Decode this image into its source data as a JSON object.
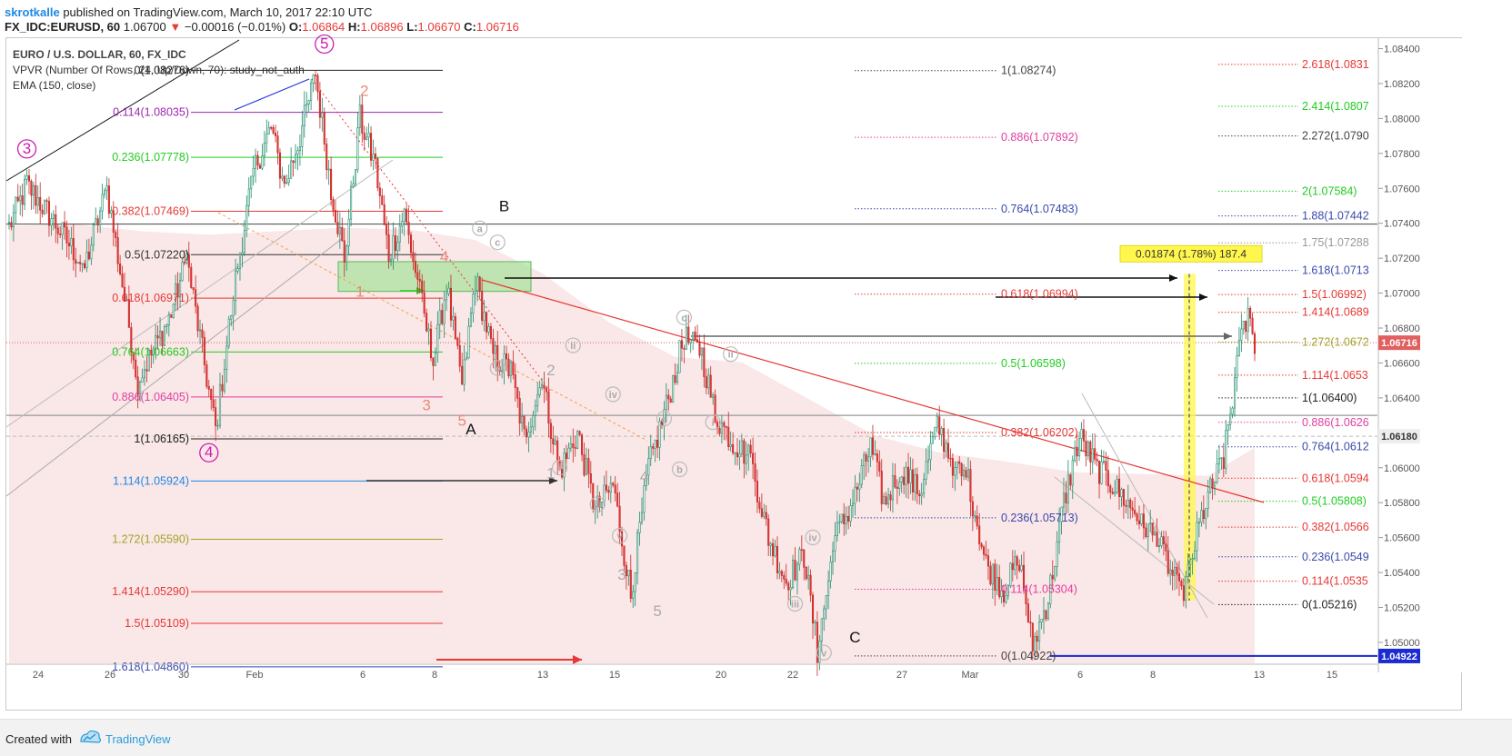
{
  "header": {
    "author": "skrotkalle",
    "published": " published on TradingView.com, March 10, 2017 22:10 UTC",
    "symbol": "FX_IDC:EURUSD, 60",
    "last": "1.06700",
    "arrow": "▼",
    "change": "−0.00016 (−0.01%)",
    "o_label": "O:",
    "o": "1.06864",
    "h_label": "H:",
    "h": "1.06896",
    "l_label": "L:",
    "l": "1.06670",
    "c_label": "C:",
    "c": "1.06716"
  },
  "legend": {
    "title": "EURO / U.S. DOLLAR, 60, FX_IDC",
    "vpvr": "VPVR (Number Of Rows, 24, Up/Down, 70): study_not_auth",
    "ema": "EMA (150, close)"
  },
  "footer": {
    "created": "Created with",
    "brand": "TradingView"
  },
  "chart_data": {
    "type": "candlestick",
    "title": "EURO / U.S. DOLLAR, 60, FX_IDC",
    "y_range": [
      1.0488,
      1.0846
    ],
    "price_ticks": [
      "1.08400",
      "1.08200",
      "1.08000",
      "1.07800",
      "1.07600",
      "1.07400",
      "1.07200",
      "1.07000",
      "1.06800",
      "1.06600",
      "1.06400",
      "1.06200",
      "1.06000",
      "1.05800",
      "1.05600",
      "1.05400",
      "1.05200",
      "1.05000"
    ],
    "x_ticks": [
      "24",
      "26",
      "30",
      "Feb",
      "6",
      "8",
      "13",
      "15",
      "20",
      "22",
      "27",
      "Mar",
      "6",
      "8",
      "13",
      "15"
    ],
    "last_price_label": "1.06716",
    "crosshair_label": "1.06180",
    "blue_level_label": "1.04922",
    "colors": {
      "up": "#26a69a",
      "down": "#ef5350",
      "up_fill": "#ffffff",
      "down_fill": "#e53935",
      "volume_profile": "#f6d7d7",
      "last_price": "#e15f5f",
      "blue_line": "#1a2bd1"
    },
    "anchors": [
      {
        "i": 0,
        "p": 1.0738
      },
      {
        "i": 8,
        "p": 1.0762
      },
      {
        "i": 18,
        "p": 1.0745
      },
      {
        "i": 34,
        "p": 1.0715
      },
      {
        "i": 44,
        "p": 1.076
      },
      {
        "i": 58,
        "p": 1.065
      },
      {
        "i": 72,
        "p": 1.0685
      },
      {
        "i": 80,
        "p": 1.072
      },
      {
        "i": 93,
        "p": 1.0621
      },
      {
        "i": 101,
        "p": 1.07
      },
      {
        "i": 110,
        "p": 1.077
      },
      {
        "i": 118,
        "p": 1.0795
      },
      {
        "i": 124,
        "p": 1.076
      },
      {
        "i": 131,
        "p": 1.079
      },
      {
        "i": 138,
        "p": 1.0825
      },
      {
        "i": 145,
        "p": 1.076
      },
      {
        "i": 151,
        "p": 1.072
      },
      {
        "i": 158,
        "p": 1.08
      },
      {
        "i": 165,
        "p": 1.0772
      },
      {
        "i": 171,
        "p": 1.0722
      },
      {
        "i": 178,
        "p": 1.0745
      },
      {
        "i": 185,
        "p": 1.07
      },
      {
        "i": 191,
        "p": 1.066
      },
      {
        "i": 197,
        "p": 1.0705
      },
      {
        "i": 204,
        "p": 1.0645
      },
      {
        "i": 210,
        "p": 1.0708
      },
      {
        "i": 218,
        "p": 1.0665
      },
      {
        "i": 226,
        "p": 1.0655
      },
      {
        "i": 232,
        "p": 1.0618
      },
      {
        "i": 240,
        "p": 1.065
      },
      {
        "i": 248,
        "p": 1.0598
      },
      {
        "i": 256,
        "p": 1.062
      },
      {
        "i": 264,
        "p": 1.0575
      },
      {
        "i": 272,
        "p": 1.059
      },
      {
        "i": 280,
        "p": 1.0528
      },
      {
        "i": 288,
        "p": 1.06
      },
      {
        "i": 296,
        "p": 1.0635
      },
      {
        "i": 304,
        "p": 1.0675
      },
      {
        "i": 312,
        "p": 1.0665
      },
      {
        "i": 318,
        "p": 1.063
      },
      {
        "i": 326,
        "p": 1.0615
      },
      {
        "i": 334,
        "p": 1.0605
      },
      {
        "i": 342,
        "p": 1.056
      },
      {
        "i": 350,
        "p": 1.0535
      },
      {
        "i": 358,
        "p": 1.055
      },
      {
        "i": 364,
        "p": 1.0495
      },
      {
        "i": 372,
        "p": 1.056
      },
      {
        "i": 380,
        "p": 1.058
      },
      {
        "i": 388,
        "p": 1.0612
      },
      {
        "i": 394,
        "p": 1.058
      },
      {
        "i": 402,
        "p": 1.06
      },
      {
        "i": 410,
        "p": 1.0585
      },
      {
        "i": 418,
        "p": 1.0625
      },
      {
        "i": 426,
        "p": 1.06
      },
      {
        "i": 432,
        "p": 1.0592
      },
      {
        "i": 440,
        "p": 1.0545
      },
      {
        "i": 448,
        "p": 1.053
      },
      {
        "i": 455,
        "p": 1.0548
      },
      {
        "i": 461,
        "p": 1.0498
      },
      {
        "i": 468,
        "p": 1.0525
      },
      {
        "i": 475,
        "p": 1.058
      },
      {
        "i": 482,
        "p": 1.0618
      },
      {
        "i": 490,
        "p": 1.06
      },
      {
        "i": 497,
        "p": 1.059
      },
      {
        "i": 504,
        "p": 1.058
      },
      {
        "i": 510,
        "p": 1.057
      },
      {
        "i": 517,
        "p": 1.0558
      },
      {
        "i": 523,
        "p": 1.0542
      },
      {
        "i": 528,
        "p": 1.0525
      },
      {
        "i": 532,
        "p": 1.0545
      },
      {
        "i": 537,
        "p": 1.0572
      },
      {
        "i": 542,
        "p": 1.059
      },
      {
        "i": 547,
        "p": 1.0605
      },
      {
        "i": 551,
        "p": 1.064
      },
      {
        "i": 555,
        "p": 1.0675
      },
      {
        "i": 558,
        "p": 1.069
      },
      {
        "i": 561,
        "p": 1.0672
      }
    ],
    "ema_150": [
      [
        0,
        1.0715
      ],
      [
        30,
        1.0716
      ],
      [
        60,
        1.0712
      ],
      [
        90,
        1.071
      ],
      [
        120,
        1.0712
      ],
      [
        150,
        1.0714
      ],
      [
        180,
        1.0713
      ],
      [
        210,
        1.0707
      ],
      [
        240,
        1.0688
      ],
      [
        270,
        1.066
      ],
      [
        300,
        1.064
      ],
      [
        330,
        1.0637
      ],
      [
        360,
        1.0616
      ],
      [
        390,
        1.0595
      ],
      [
        420,
        1.0585
      ],
      [
        450,
        1.058
      ],
      [
        480,
        1.0574
      ],
      [
        510,
        1.0573
      ],
      [
        540,
        1.0572
      ],
      [
        561,
        1.0588
      ]
    ],
    "fib_left": [
      {
        "label": "0(1.08276)",
        "price": 1.08276,
        "color": "#222222"
      },
      {
        "label": "0.114(1.08035)",
        "price": 1.08035,
        "color": "#9c27b0"
      },
      {
        "label": "0.236(1.07778)",
        "price": 1.07778,
        "color": "#22cc22"
      },
      {
        "label": "0.382(1.07469)",
        "price": 1.07469,
        "color": "#e53935"
      },
      {
        "label": "0.5(1.07220)",
        "price": 1.0722,
        "color": "#333333"
      },
      {
        "label": "0.618(1.06971)",
        "price": 1.06971,
        "color": "#e53935"
      },
      {
        "label": "0.764(1.06663)",
        "price": 1.06663,
        "color": "#22cc22"
      },
      {
        "label": "0.886(1.06405)",
        "price": 1.06405,
        "color": "#e040a0"
      },
      {
        "label": "1(1.06165)",
        "price": 1.06165,
        "color": "#222222"
      },
      {
        "label": "1.114(1.05924)",
        "price": 1.05924,
        "color": "#1e88e5"
      },
      {
        "label": "1.272(1.05590)",
        "price": 1.0559,
        "color": "#9ea52a"
      },
      {
        "label": "1.414(1.05290)",
        "price": 1.0529,
        "color": "#e53935"
      },
      {
        "label": "1.5(1.05109)",
        "price": 1.05109,
        "color": "#e53935"
      },
      {
        "label": "1.618(1.04860)",
        "price": 1.0486,
        "color": "#3949ab"
      }
    ],
    "fib_middle": [
      {
        "label": "1(1.08274)",
        "price": 1.08274,
        "color": "#444444"
      },
      {
        "label": "0.886(1.07892)",
        "price": 1.07892,
        "color": "#e040a0"
      },
      {
        "label": "0.764(1.07483)",
        "price": 1.07483,
        "color": "#3949ab"
      },
      {
        "label": "0.618(1.06994)",
        "price": 1.06994,
        "color": "#e53935"
      },
      {
        "label": "0.5(1.06598)",
        "price": 1.06598,
        "color": "#22cc22"
      },
      {
        "label": "0.382(1.06202)",
        "price": 1.06202,
        "color": "#e53935"
      },
      {
        "label": "0.236(1.05713)",
        "price": 1.05713,
        "color": "#3949ab"
      },
      {
        "label": "0.114(1.05304)",
        "price": 1.05304,
        "color": "#e040a0"
      },
      {
        "label": "0(1.04922)",
        "price": 1.04922,
        "color": "#444444"
      }
    ],
    "fib_right": [
      {
        "label": "2.618(1.0831",
        "price": 1.0831,
        "color": "#e53935"
      },
      {
        "label": "2.414(1.0807",
        "price": 1.0807,
        "color": "#22cc22"
      },
      {
        "label": "2.272(1.0790",
        "price": 1.079,
        "color": "#444444"
      },
      {
        "label": "2(1.07584)",
        "price": 1.07584,
        "color": "#22cc22"
      },
      {
        "label": "1.88(1.07442",
        "price": 1.07442,
        "color": "#3949ab"
      },
      {
        "label": "1.75(1.07288",
        "price": 1.07288,
        "color": "#999999"
      },
      {
        "label": "1.618(1.0713",
        "price": 1.0713,
        "color": "#3949ab"
      },
      {
        "label": "1.5(1.06992)",
        "price": 1.06992,
        "color": "#e53935"
      },
      {
        "label": "1.414(1.0689",
        "price": 1.0689,
        "color": "#e53935"
      },
      {
        "label": "1.272(1.0672",
        "price": 1.0672,
        "color": "#9ea52a"
      },
      {
        "label": "1.114(1.0653",
        "price": 1.0653,
        "color": "#e53935"
      },
      {
        "label": "1(1.06400)",
        "price": 1.064,
        "color": "#222222"
      },
      {
        "label": "0.886(1.0626",
        "price": 1.0626,
        "color": "#e040a0"
      },
      {
        "label": "0.764(1.0612",
        "price": 1.0612,
        "color": "#3949ab"
      },
      {
        "label": "0.618(1.0594",
        "price": 1.0594,
        "color": "#e53935"
      },
      {
        "label": "0.5(1.05808)",
        "price": 1.05808,
        "color": "#22cc22"
      },
      {
        "label": "0.382(1.0566",
        "price": 1.0566,
        "color": "#e53935"
      },
      {
        "label": "0.236(1.0549",
        "price": 1.0549,
        "color": "#3949ab"
      },
      {
        "label": "0.114(1.0535",
        "price": 1.0535,
        "color": "#e53935"
      },
      {
        "label": "0(1.05216)",
        "price": 1.05216,
        "color": "#222222"
      }
    ],
    "measure_label": "0.01874 (1.78%) 187.4",
    "wave_labels": [
      {
        "text": "3",
        "i": 8,
        "p": 1.078,
        "color": "#cc1fb0",
        "circled": true
      },
      {
        "text": "5",
        "i": 142,
        "p": 1.084,
        "color": "#cc1fb0",
        "circled": true
      },
      {
        "text": "4",
        "i": 90,
        "p": 1.0606,
        "color": "#cc1fb0",
        "circled": true
      },
      {
        "text": "B",
        "i": 223,
        "p": 1.0747,
        "color": "#111111"
      },
      {
        "text": "A",
        "i": 208,
        "p": 1.0619,
        "color": "#111111"
      },
      {
        "text": "C",
        "i": 381,
        "p": 1.05,
        "color": "#111111"
      },
      {
        "text": "2",
        "i": 160,
        "p": 1.0813,
        "color": "#e88a7a"
      },
      {
        "text": "1",
        "i": 158,
        "p": 1.0698,
        "color": "#e88a7a"
      },
      {
        "text": "4",
        "i": 196,
        "p": 1.0718,
        "color": "#e88a7a"
      },
      {
        "text": "3",
        "i": 188,
        "p": 1.0633,
        "color": "#e88a7a"
      },
      {
        "text": "5",
        "i": 204,
        "p": 1.0624,
        "color": "#e88a7a"
      },
      {
        "text": "2",
        "i": 244,
        "p": 1.0653,
        "color": "#aaaaaa"
      },
      {
        "text": "1",
        "i": 244,
        "p": 1.0594,
        "color": "#aaaaaa"
      },
      {
        "text": "4",
        "i": 286,
        "p": 1.0592,
        "color": "#aaaaaa"
      },
      {
        "text": "3",
        "i": 276,
        "p": 1.0536,
        "color": "#aaaaaa"
      },
      {
        "text": "5",
        "i": 292,
        "p": 1.0515,
        "color": "#aaaaaa"
      }
    ],
    "minor_labels": [
      {
        "text": "a",
        "i": 212,
        "p": 1.0735
      },
      {
        "text": "c",
        "i": 220,
        "p": 1.0727
      },
      {
        "text": "b",
        "i": 220,
        "p": 1.0655
      },
      {
        "text": "ii",
        "i": 254,
        "p": 1.0668
      },
      {
        "text": "i",
        "i": 248,
        "p": 1.0598
      },
      {
        "text": "iii",
        "i": 265,
        "p": 1.0577
      },
      {
        "text": "iv",
        "i": 272,
        "p": 1.064
      },
      {
        "text": "v",
        "i": 275,
        "p": 1.0559
      },
      {
        "text": "a",
        "i": 295,
        "p": 1.0626
      },
      {
        "text": "b",
        "i": 302,
        "p": 1.0597
      },
      {
        "text": "c",
        "i": 304,
        "p": 1.0684
      },
      {
        "text": "ii",
        "i": 325,
        "p": 1.0663
      },
      {
        "text": "i",
        "i": 317,
        "p": 1.0624
      },
      {
        "text": "iv",
        "i": 362,
        "p": 1.0558
      },
      {
        "text": "iii",
        "i": 354,
        "p": 1.052
      },
      {
        "text": "v",
        "i": 367,
        "p": 1.0492
      }
    ]
  }
}
